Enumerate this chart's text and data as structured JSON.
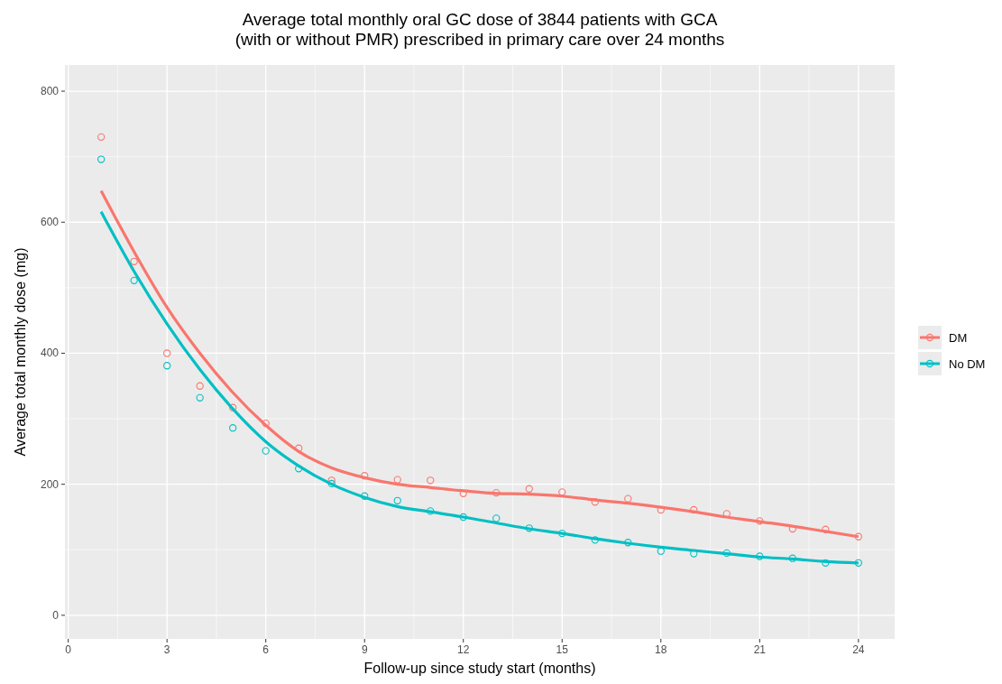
{
  "chart_data": {
    "type": "scatter",
    "title": "Average total monthly oral GC dose of 3844 patients with GCA\n(with or without PMR) prescribed in primary care over 24 months",
    "xlabel": "Follow-up since study start (months)",
    "ylabel": "Average total monthly dose (mg)",
    "x": [
      1,
      2,
      3,
      4,
      5,
      6,
      7,
      8,
      9,
      10,
      11,
      12,
      13,
      14,
      15,
      16,
      17,
      18,
      19,
      20,
      21,
      22,
      23,
      24
    ],
    "series": [
      {
        "name": "DM",
        "color": "#f8766d",
        "marker": "circle",
        "values": [
          730,
          540,
          400,
          350,
          317,
          293,
          255,
          206,
          213,
          207,
          206,
          186,
          187,
          193,
          188,
          173,
          178,
          161,
          161,
          155,
          144,
          132,
          131,
          120
        ]
      },
      {
        "name": "No DM",
        "color": "#00bfc4",
        "marker": "circle",
        "values": [
          696,
          511,
          381,
          332,
          286,
          251,
          224,
          201,
          182,
          175,
          159,
          150,
          148,
          133,
          125,
          115,
          111,
          98,
          94,
          95,
          90,
          87,
          80,
          80
        ]
      },
      {
        "color": "#f8766d",
        "type": "line",
        "values": [
          648,
          555,
          470,
          400,
          340,
          290,
          250,
          225,
          210,
          200,
          195,
          190,
          186,
          185,
          182,
          176,
          171,
          165,
          158,
          150,
          143,
          136,
          128,
          120
        ]
      },
      {
        "color": "#00bfc4",
        "type": "line",
        "values": [
          616,
          525,
          445,
          375,
          315,
          265,
          228,
          200,
          180,
          166,
          158,
          150,
          141,
          132,
          125,
          117,
          110,
          104,
          99,
          94,
          89,
          86,
          82,
          80
        ]
      }
    ],
    "xlim": [
      -0.1,
      25.1
    ],
    "ylim": [
      -36,
      840
    ],
    "xticks": [
      0,
      3,
      6,
      9,
      12,
      15,
      18,
      21,
      24
    ],
    "yticks": [
      0,
      200,
      400,
      600,
      800
    ],
    "grid": true,
    "legend": "right"
  }
}
